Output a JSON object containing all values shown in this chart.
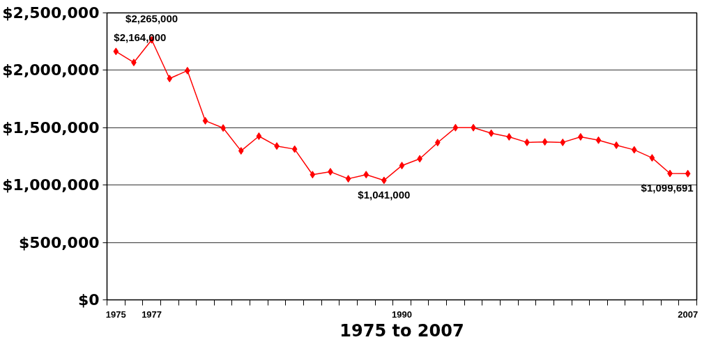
{
  "chart_data": {
    "type": "line",
    "xlabel": "1975 to 2007",
    "categories": [
      "1975",
      null,
      "1977",
      null,
      null,
      null,
      null,
      null,
      null,
      null,
      null,
      null,
      null,
      null,
      null,
      null,
      "1990",
      null,
      null,
      null,
      null,
      null,
      null,
      null,
      null,
      null,
      null,
      null,
      null,
      null,
      null,
      null,
      "2007"
    ],
    "series": [
      {
        "color": "#ff0000",
        "values": [
          2164000,
          2068000,
          2265000,
          1928000,
          1997000,
          1560000,
          1497000,
          1298000,
          1426000,
          1340000,
          1313000,
          1091000,
          1116000,
          1055000,
          1091000,
          1041000,
          1170000,
          1229000,
          1370000,
          1500000,
          1500000,
          1452000,
          1420000,
          1372000,
          1376000,
          1372000,
          1420000,
          1391000,
          1347000,
          1307000,
          1237000,
          1101000,
          1099691
        ],
        "value_labels": [
          "$2,164,000",
          null,
          "$2,265,000",
          null,
          null,
          null,
          null,
          null,
          null,
          null,
          null,
          null,
          null,
          null,
          null,
          "$1,041,000",
          null,
          null,
          null,
          null,
          null,
          null,
          null,
          null,
          null,
          null,
          null,
          null,
          null,
          null,
          null,
          null,
          "$1,099,691"
        ]
      }
    ],
    "ylim": [
      0,
      2500000
    ],
    "yticks": [
      {
        "value": 0,
        "label": "$0"
      },
      {
        "value": 500000,
        "label": "$500,000"
      },
      {
        "value": 1000000,
        "label": "$1,000,000"
      },
      {
        "value": 1500000,
        "label": "$1,500,000"
      },
      {
        "value": 2000000,
        "label": "$2,000,000"
      },
      {
        "value": 2500000,
        "label": "$2,500,000"
      }
    ],
    "grid": "y",
    "marker": "diamond",
    "line_style": "solid"
  }
}
